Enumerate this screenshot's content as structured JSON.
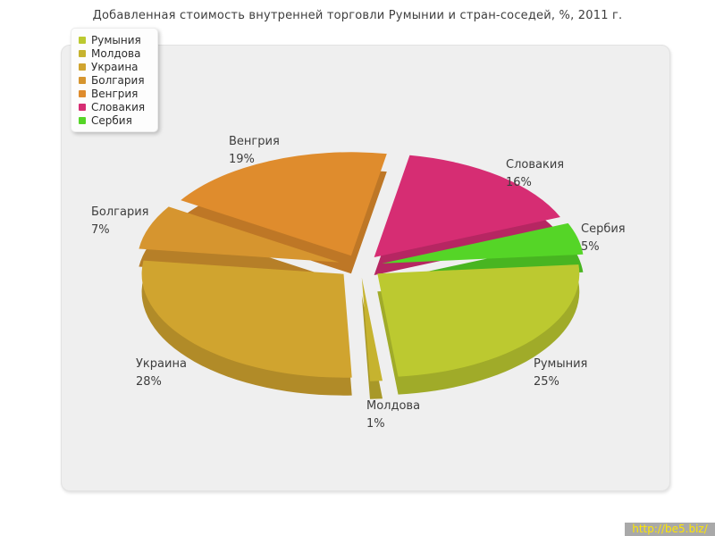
{
  "chart_data": {
    "type": "pie",
    "style": "3d-exploded",
    "title": "Добавленная стоимость внутренней торговли Румынии и стран-соседей, %, 2011 г.",
    "unit": "%",
    "legend_position": "top-left",
    "grid": false,
    "labels": [
      "Румыния",
      "Молдова",
      "Украина",
      "Болгария",
      "Венгрия",
      "Словакия",
      "Сербия"
    ],
    "values": [
      25,
      1,
      28,
      7,
      19,
      16,
      5
    ],
    "colors": [
      "#bcc930",
      "#c6b32f",
      "#d0a42f",
      "#d6952f",
      "#df8c2d",
      "#d62d73",
      "#55d527"
    ]
  },
  "panel": {
    "background": "#efefef"
  },
  "watermark": {
    "text": "http://be5.biz/",
    "background": "#a9a9a9",
    "color": "#ffe600"
  }
}
